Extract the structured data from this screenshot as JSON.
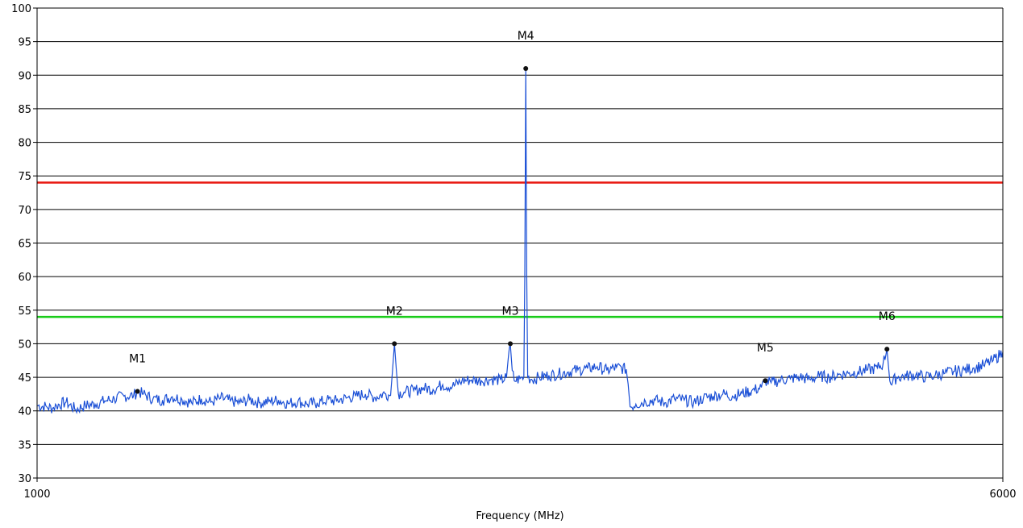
{
  "chart_data": {
    "type": "line",
    "title": "",
    "xlabel": "Frequency (MHz)",
    "ylabel": "",
    "xlim": [
      1000,
      6000
    ],
    "ylim": [
      30,
      100
    ],
    "grid": true,
    "x_tick_labels": [
      "1000",
      "6000"
    ],
    "y_ticks": [
      30,
      35,
      40,
      45,
      50,
      55,
      60,
      65,
      70,
      75,
      80,
      85,
      90,
      95,
      100
    ],
    "limit_lines": [
      {
        "value": 74,
        "color": "#e8170f"
      },
      {
        "value": 54,
        "color": "#19cc19"
      }
    ],
    "trace_color": "#1a4fd6",
    "markers": [
      {
        "label": "M1",
        "x": 1520,
        "y": 42.9
      },
      {
        "label": "M2",
        "x": 2850,
        "y": 50.0
      },
      {
        "label": "M3",
        "x": 3450,
        "y": 50.0
      },
      {
        "label": "M4",
        "x": 3530,
        "y": 91.0
      },
      {
        "label": "M5",
        "x": 4770,
        "y": 44.5
      },
      {
        "label": "M6",
        "x": 5400,
        "y": 49.2
      }
    ],
    "series": [
      {
        "x": [
          1000,
          1050,
          1080,
          1100,
          1150,
          1200,
          1250,
          1300,
          1350,
          1400,
          1450,
          1500,
          1520,
          1550,
          1600,
          1650,
          1700,
          1750,
          1800,
          1850,
          1900,
          1950,
          2000,
          2050,
          2100,
          2150,
          2200,
          2250,
          2300,
          2350,
          2400,
          2450,
          2500,
          2550,
          2600,
          2650,
          2700,
          2750,
          2800,
          2830,
          2840,
          2850,
          2860,
          2870,
          2900,
          2950,
          3000,
          3050,
          3100,
          3150,
          3200,
          3250,
          3300,
          3350,
          3400,
          3430,
          3440,
          3450,
          3460,
          3470,
          3500,
          3520,
          3525,
          3530,
          3535,
          3540,
          3560,
          3600,
          3650,
          3700,
          3750,
          3800,
          3850,
          3900,
          3950,
          4000,
          4050,
          4060,
          4070,
          4100,
          4150,
          4200,
          4250,
          4300,
          4350,
          4400,
          4450,
          4500,
          4550,
          4600,
          4650,
          4700,
          4750,
          4770,
          4800,
          4850,
          4900,
          4950,
          5000,
          5050,
          5100,
          5150,
          5200,
          5250,
          5300,
          5350,
          5380,
          5400,
          5410,
          5420,
          5450,
          5500,
          5550,
          5600,
          5650,
          5700,
          5750,
          5800,
          5850,
          5900,
          5950,
          6000
        ],
        "y": [
          40.8,
          40.6,
          40.4,
          40.8,
          41.3,
          40.2,
          40.8,
          41.0,
          41.5,
          41.8,
          42.2,
          42.3,
          42.9,
          42.5,
          41.8,
          41.6,
          42.1,
          41.7,
          41.2,
          41.8,
          41.3,
          41.9,
          41.5,
          41.2,
          41.7,
          41.2,
          41.4,
          41.6,
          41.1,
          41.4,
          41.0,
          41.2,
          41.6,
          41.5,
          41.9,
          42.2,
          42.5,
          42.0,
          42.6,
          42.3,
          46.0,
          50.0,
          46.0,
          42.6,
          42.8,
          43.0,
          43.4,
          43.2,
          43.9,
          43.6,
          44.5,
          44.6,
          44.5,
          44.7,
          44.6,
          44.9,
          48.0,
          50.0,
          46.0,
          44.5,
          44.8,
          45.0,
          60.0,
          91.0,
          60.0,
          45.0,
          44.7,
          45.0,
          45.3,
          45.5,
          45.8,
          46.1,
          46.3,
          46.6,
          46.0,
          46.5,
          46.2,
          44.0,
          40.6,
          41.0,
          41.4,
          41.6,
          41.2,
          41.8,
          41.6,
          41.3,
          41.9,
          42.2,
          42.5,
          42.2,
          42.6,
          43.0,
          43.5,
          44.5,
          44.2,
          44.6,
          44.8,
          45.0,
          44.7,
          45.2,
          45.0,
          45.4,
          45.6,
          45.8,
          46.1,
          46.4,
          47.0,
          49.2,
          46.0,
          44.0,
          45.0,
          45.2,
          45.4,
          45.0,
          45.3,
          45.6,
          45.9,
          46.1,
          46.4,
          46.8,
          47.5,
          48.8
        ]
      }
    ]
  }
}
